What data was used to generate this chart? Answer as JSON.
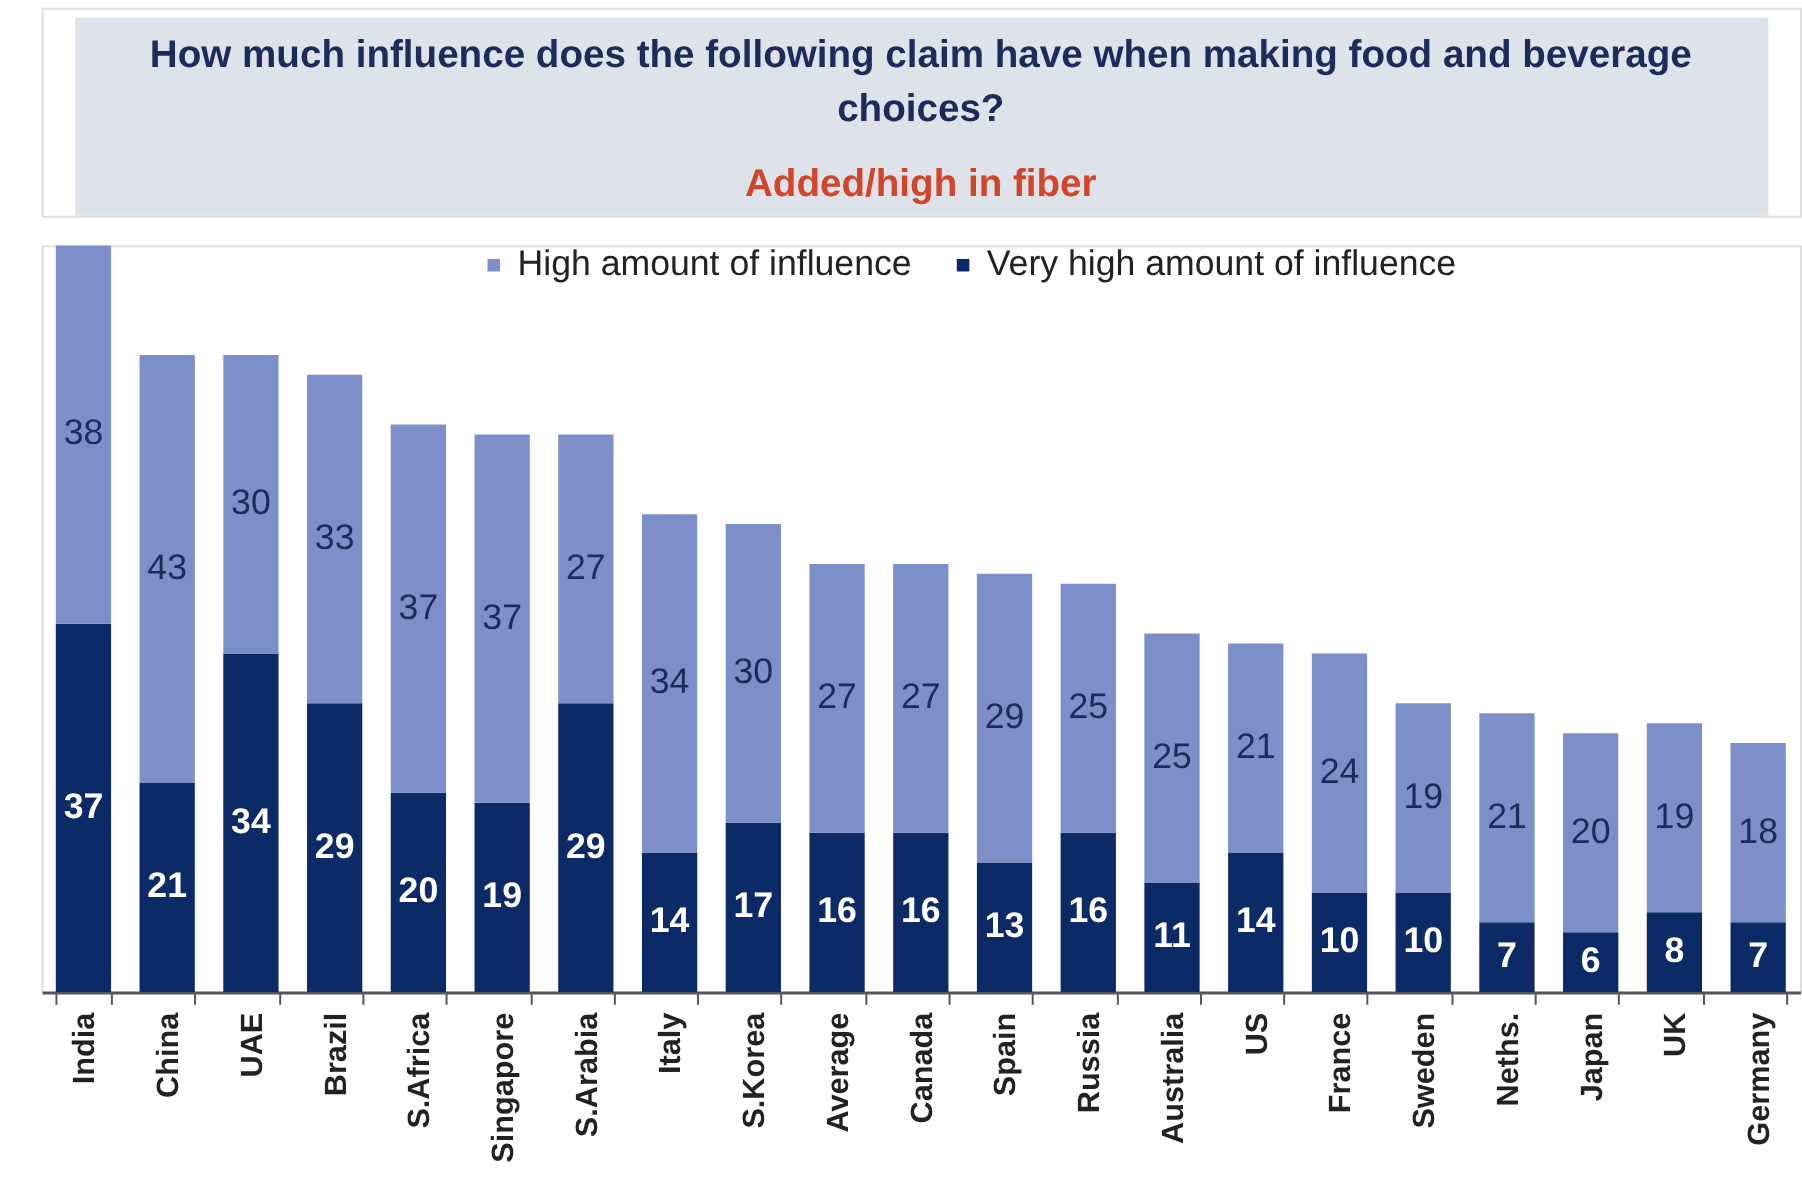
{
  "chart_data": {
    "type": "bar",
    "title": "How much influence does the following claim have when making food and beverage choices?",
    "subtitle": "Added/high in fiber",
    "categories": [
      "India",
      "China",
      "UAE",
      "Brazil",
      "S.Africa",
      "Singapore",
      "S.Arabia",
      "Italy",
      "S.Korea",
      "Average",
      "Canada",
      "Spain",
      "Russia",
      "Australia",
      "US",
      "France",
      "Sweden",
      "Neths.",
      "Japan",
      "UK",
      "Germany"
    ],
    "stacked": true,
    "series": [
      {
        "name": "Very high amount of influence",
        "color": "#0b2a66",
        "values": [
          37,
          21,
          34,
          29,
          20,
          19,
          29,
          14,
          17,
          16,
          16,
          13,
          16,
          11,
          14,
          10,
          10,
          7,
          6,
          8,
          7
        ]
      },
      {
        "name": "High amount of influence",
        "color": "#7c8fc8",
        "values": [
          38,
          43,
          30,
          33,
          37,
          37,
          27,
          34,
          30,
          27,
          27,
          29,
          25,
          25,
          21,
          24,
          19,
          21,
          20,
          19,
          18
        ]
      }
    ],
    "data_labels": true,
    "legend": "top"
  }
}
